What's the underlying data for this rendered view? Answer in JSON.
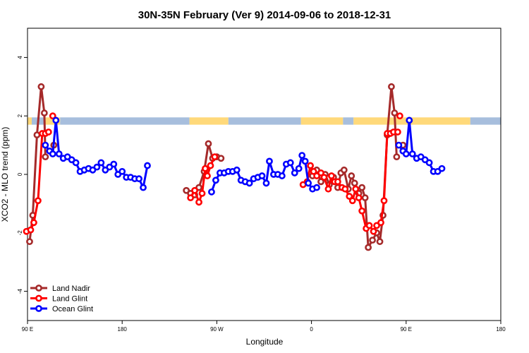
{
  "chart_data": {
    "type": "line",
    "title": "30N-35N February (Ver 9)   2014-09-06 to 2018-12-31",
    "xlabel": "Longitude",
    "ylabel": "XCO2 - MLO trend (ppm)",
    "xlim": [
      90,
      540
    ],
    "ylim": [
      -5,
      5
    ],
    "x_ticks": [
      {
        "value": 90,
        "label": "90 E"
      },
      {
        "value": 180,
        "label": "180"
      },
      {
        "value": 270,
        "label": "90 W"
      },
      {
        "value": 360,
        "label": "0"
      },
      {
        "value": 450,
        "label": "90 E"
      },
      {
        "value": 540,
        "label": "180"
      }
    ],
    "y_ticks": [
      {
        "value": -4,
        "label": "-4"
      },
      {
        "value": -2,
        "label": "-2"
      },
      {
        "value": 0,
        "label": "0"
      },
      {
        "value": 2,
        "label": "2"
      },
      {
        "value": 4,
        "label": "4"
      }
    ],
    "grid": false,
    "legend_position": "bottom-left",
    "surface_band": {
      "y_range": [
        1.7,
        1.95
      ],
      "land_color": "#ffd97a",
      "ocean_color": "#a7bedd",
      "segments": [
        {
          "x0": 90,
          "x1": 94,
          "type": "land"
        },
        {
          "x0": 94,
          "x1": 106,
          "type": "ocean"
        },
        {
          "x0": 106,
          "x1": 121,
          "type": "land"
        },
        {
          "x0": 121,
          "x1": 244,
          "type": "ocean"
        },
        {
          "x0": 244,
          "x1": 281,
          "type": "land"
        },
        {
          "x0": 281,
          "x1": 350,
          "type": "ocean"
        },
        {
          "x0": 350,
          "x1": 390,
          "type": "land"
        },
        {
          "x0": 390,
          "x1": 400,
          "type": "ocean"
        },
        {
          "x0": 400,
          "x1": 511,
          "type": "land"
        },
        {
          "x0": 511,
          "x1": 540,
          "type": "ocean"
        }
      ]
    },
    "series": [
      {
        "name": "Land Nadir",
        "color": "#a52a2a",
        "segments": [
          [
            [
              92,
              -2.3
            ],
            [
              95,
              -1.4
            ],
            [
              99,
              1.35
            ],
            [
              103,
              3.0
            ],
            [
              106,
              2.1
            ],
            [
              107,
              0.6
            ]
          ],
          [
            [
              115,
              1.0
            ]
          ],
          [
            [
              241,
              -0.55
            ],
            [
              245,
              -0.65
            ],
            [
              249,
              -0.7
            ],
            [
              253,
              -0.45
            ],
            [
              258,
              0.1
            ],
            [
              262,
              1.05
            ],
            [
              266,
              0.55
            ],
            [
              270,
              0.6
            ],
            [
              274,
              0.55
            ]
          ],
          [
            [
              361,
              -0.05
            ],
            [
              365,
              0.15
            ],
            [
              369,
              -0.25
            ],
            [
              373,
              0.0
            ],
            [
              377,
              -0.35
            ],
            [
              381,
              -0.1
            ],
            [
              385,
              -0.45
            ],
            [
              388,
              0.05
            ],
            [
              391,
              0.15
            ],
            [
              395,
              -0.5
            ],
            [
              398,
              -0.05
            ],
            [
              401,
              -0.3
            ],
            [
              405,
              -0.65
            ],
            [
              408,
              -0.45
            ],
            [
              411,
              -0.8
            ],
            [
              414,
              -2.5
            ],
            [
              418,
              -2.25
            ],
            [
              422,
              -2.0
            ],
            [
              425,
              -2.3
            ],
            [
              428,
              -1.4
            ],
            [
              432,
              1.35
            ],
            [
              436,
              3.0
            ],
            [
              439,
              2.1
            ],
            [
              441,
              0.6
            ]
          ],
          [
            [
              447,
              1.0
            ]
          ]
        ]
      },
      {
        "name": "Land Glint",
        "color": "#ff0000",
        "segments": [
          [
            [
              89,
              -1.95
            ],
            [
              93,
              -1.9
            ],
            [
              96,
              -1.65
            ],
            [
              100,
              -0.9
            ],
            [
              104,
              1.4
            ],
            [
              107,
              1.4
            ],
            [
              110,
              1.45
            ]
          ],
          [
            [
              114,
              2.0
            ]
          ],
          [
            [
              245,
              -0.8
            ],
            [
              249,
              -0.55
            ],
            [
              253,
              -0.95
            ],
            [
              256,
              -0.65
            ],
            [
              259,
              0.2
            ],
            [
              261,
              -0.05
            ],
            [
              264,
              0.3
            ],
            [
              268,
              0.6
            ]
          ],
          [
            [
              352,
              -0.35
            ],
            [
              356,
              -0.25
            ],
            [
              359,
              0.3
            ],
            [
              362,
              0.1
            ],
            [
              365,
              -0.05
            ],
            [
              369,
              0.05
            ],
            [
              372,
              -0.1
            ],
            [
              376,
              -0.5
            ],
            [
              379,
              -0.05
            ],
            [
              382,
              -0.25
            ],
            [
              385,
              -0.25
            ],
            [
              389,
              -0.45
            ],
            [
              392,
              -0.5
            ],
            [
              396,
              -0.75
            ],
            [
              399,
              -0.9
            ],
            [
              402,
              -0.5
            ],
            [
              405,
              -0.8
            ],
            [
              408,
              -1.25
            ],
            [
              412,
              -1.85
            ],
            [
              415,
              -1.75
            ],
            [
              419,
              -1.95
            ],
            [
              422,
              -1.75
            ],
            [
              426,
              -1.65
            ],
            [
              429,
              -0.9
            ],
            [
              432,
              1.4
            ],
            [
              435,
              1.4
            ],
            [
              438,
              1.45
            ],
            [
              442,
              1.45
            ]
          ],
          [
            [
              444,
              2.0
            ]
          ]
        ]
      },
      {
        "name": "Ocean Glint",
        "color": "#0000ff",
        "segments": [
          [
            [
              107,
              1.0
            ],
            [
              111,
              0.8
            ],
            [
              114,
              0.7
            ],
            [
              117,
              1.85
            ],
            [
              120,
              0.7
            ],
            [
              124,
              0.55
            ],
            [
              128,
              0.6
            ],
            [
              132,
              0.5
            ],
            [
              136,
              0.4
            ],
            [
              140,
              0.1
            ],
            [
              144,
              0.15
            ],
            [
              148,
              0.2
            ],
            [
              152,
              0.15
            ],
            [
              156,
              0.25
            ],
            [
              160,
              0.4
            ],
            [
              164,
              0.15
            ],
            [
              168,
              0.25
            ],
            [
              172,
              0.35
            ],
            [
              176,
              0.0
            ],
            [
              180,
              0.1
            ],
            [
              184,
              -0.1
            ],
            [
              188,
              -0.1
            ],
            [
              192,
              -0.15
            ],
            [
              196,
              -0.15
            ],
            [
              200,
              -0.45
            ],
            [
              204,
              0.3
            ]
          ],
          [
            [
              265,
              -0.6
            ],
            [
              269,
              -0.2
            ],
            [
              273,
              0.05
            ],
            [
              277,
              0.05
            ],
            [
              281,
              0.1
            ],
            [
              285,
              0.1
            ],
            [
              289,
              0.15
            ],
            [
              293,
              -0.2
            ],
            [
              297,
              -0.25
            ],
            [
              301,
              -0.3
            ],
            [
              305,
              -0.15
            ],
            [
              309,
              -0.1
            ],
            [
              313,
              -0.05
            ],
            [
              317,
              -0.3
            ],
            [
              320,
              0.45
            ],
            [
              324,
              0.0
            ],
            [
              328,
              0.0
            ],
            [
              332,
              -0.05
            ],
            [
              336,
              0.35
            ],
            [
              340,
              0.4
            ],
            [
              344,
              0.05
            ],
            [
              348,
              0.2
            ],
            [
              351,
              0.65
            ],
            [
              354,
              0.45
            ],
            [
              357,
              -0.3
            ],
            [
              361,
              -0.5
            ],
            [
              365,
              -0.45
            ]
          ],
          [
            [
              443,
              1.0
            ],
            [
              447,
              0.8
            ],
            [
              450,
              0.7
            ],
            [
              453,
              1.85
            ],
            [
              456,
              0.7
            ],
            [
              460,
              0.55
            ],
            [
              464,
              0.6
            ],
            [
              468,
              0.5
            ],
            [
              472,
              0.4
            ],
            [
              476,
              0.1
            ],
            [
              480,
              0.1
            ],
            [
              484,
              0.2
            ]
          ]
        ]
      }
    ]
  }
}
